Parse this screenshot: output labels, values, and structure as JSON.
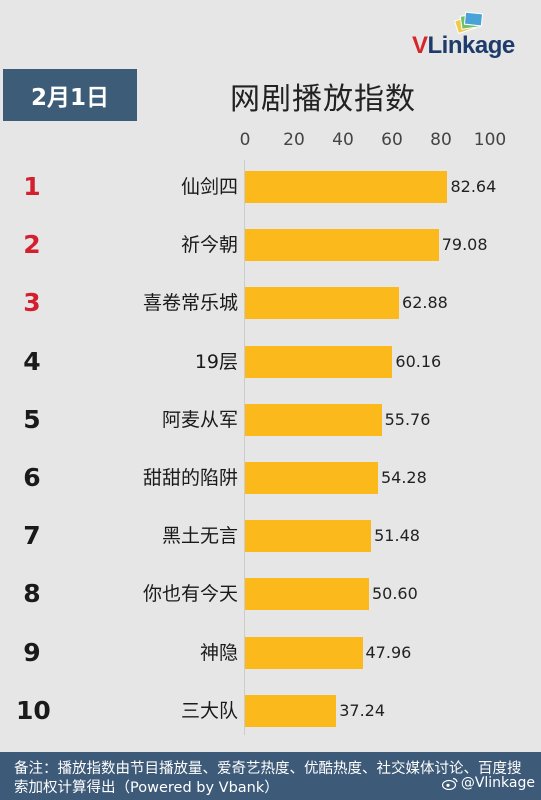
{
  "brand": {
    "logo_v": "V",
    "logo_rest": "Link",
    "logo_tail": "age"
  },
  "date": "2月1日",
  "chart_data": {
    "type": "bar",
    "orientation": "horizontal",
    "title": "网剧播放指数",
    "xlim": [
      0,
      100
    ],
    "ticks": [
      "0",
      "20",
      "40",
      "60",
      "80",
      "100"
    ],
    "ranks": [
      "1",
      "2",
      "3",
      "4",
      "5",
      "6",
      "7",
      "8",
      "9",
      "10"
    ],
    "categories": [
      "仙剑四",
      "祈今朝",
      "喜卷常乐城",
      "19层",
      "阿麦从军",
      "甜甜的陷阱",
      "黑土无言",
      "你也有今天",
      "神隐",
      "三大队"
    ],
    "values": [
      82.64,
      79.08,
      62.88,
      60.16,
      55.76,
      54.28,
      51.48,
      50.6,
      47.96,
      37.24
    ],
    "value_labels": [
      "82.64",
      "79.08",
      "62.88",
      "60.16",
      "55.76",
      "54.28",
      "51.48",
      "50.60",
      "47.96",
      "37.24"
    ],
    "bar_color": "#fcb91c",
    "highlight_rank_color": "#d2202f"
  },
  "footer": {
    "note": "备注：播放指数由节目播放量、爱奇艺热度、优酷热度、社交媒体讨论、百度搜索加权计算得出（Powered by Vbank）",
    "watermark": "@Vlinkage"
  }
}
